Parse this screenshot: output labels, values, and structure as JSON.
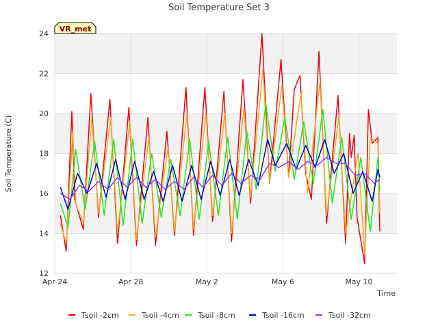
{
  "chart_data": {
    "type": "line",
    "title": "Soil Temperature Set 3",
    "xlabel": "Time",
    "ylabel": "Soil Temperature (C)",
    "badge": "VR_met",
    "ylim": [
      12,
      24
    ],
    "yticks": [
      12,
      14,
      16,
      18,
      20,
      22,
      24
    ],
    "xlim": [
      0,
      18
    ],
    "xticks": [
      {
        "x": 0,
        "label": "Apr 24"
      },
      {
        "x": 4,
        "label": "Apr 28"
      },
      {
        "x": 8,
        "label": "May 2"
      },
      {
        "x": 12,
        "label": "May 6"
      },
      {
        "x": 16,
        "label": "May 10"
      }
    ],
    "grid": "horizontal bands",
    "legend": "bottom",
    "series": [
      {
        "name": "Tsoil -2cm",
        "color": "#e8000b",
        "x": [
          0.3,
          0.6,
          0.9,
          1.05,
          1.5,
          1.9,
          2.3,
          2.9,
          3.3,
          3.9,
          4.3,
          4.9,
          5.3,
          5.9,
          6.3,
          6.9,
          7.3,
          7.9,
          8.3,
          8.9,
          9.3,
          9.9,
          10.3,
          10.9,
          11.3,
          11.9,
          12.3,
          12.6,
          12.9,
          13.2,
          13.5,
          13.9,
          14.3,
          14.9,
          15.3,
          15.5,
          15.6,
          15.75,
          15.9,
          16.3,
          16.5,
          16.7,
          17.0,
          17.1
        ],
        "values": [
          14.9,
          13.1,
          20.1,
          15.7,
          14.2,
          21.0,
          14.8,
          20.7,
          13.5,
          20.3,
          13.4,
          19.8,
          13.4,
          19.1,
          13.9,
          21.3,
          13.9,
          21.3,
          14.6,
          21.1,
          13.6,
          21.7,
          15.5,
          24.0,
          16.5,
          22.7,
          16.8,
          21.2,
          21.9,
          17.0,
          15.7,
          23.1,
          14.5,
          20.9,
          13.5,
          19.0,
          17.8,
          18.9,
          14.8,
          12.5,
          20.2,
          18.5,
          18.8,
          14.1
        ]
      },
      {
        "name": "Tsoil -4cm",
        "color": "#f5a623",
        "x": [
          0.3,
          0.6,
          0.95,
          1.1,
          1.5,
          1.95,
          2.3,
          2.95,
          3.3,
          3.95,
          4.3,
          4.95,
          5.3,
          5.95,
          6.3,
          6.95,
          7.3,
          7.95,
          8.3,
          8.95,
          9.3,
          9.95,
          10.3,
          10.95,
          11.3,
          11.95,
          12.3,
          12.95,
          13.3,
          13.95,
          14.3,
          14.95,
          15.3,
          15.95,
          16.3,
          16.6,
          17.0,
          17.1
        ],
        "values": [
          14.5,
          13.5,
          19.1,
          15.5,
          14.5,
          19.8,
          15.0,
          19.8,
          14.0,
          19.6,
          13.7,
          18.8,
          13.8,
          18.3,
          14.1,
          20.0,
          14.2,
          20.0,
          14.9,
          20.0,
          14.0,
          20.3,
          15.8,
          22.2,
          16.5,
          21.4,
          16.8,
          21.0,
          16.0,
          21.6,
          14.9,
          19.9,
          14.0,
          18.0,
          13.0,
          18.8,
          18.5,
          15.0
        ]
      },
      {
        "name": "Tsoil -8cm",
        "color": "#1ee81e",
        "x": [
          0.3,
          0.7,
          1.1,
          1.6,
          2.1,
          2.6,
          3.1,
          3.6,
          4.1,
          4.6,
          5.1,
          5.6,
          6.1,
          6.6,
          7.1,
          7.6,
          8.1,
          8.6,
          9.1,
          9.6,
          10.1,
          10.6,
          11.1,
          11.6,
          12.1,
          12.6,
          13.1,
          13.6,
          14.1,
          14.6,
          15.1,
          15.6,
          16.1,
          16.6,
          17.0,
          17.1
        ],
        "values": [
          15.5,
          14.3,
          18.2,
          15.2,
          18.6,
          14.9,
          18.7,
          14.4,
          18.7,
          14.5,
          18.0,
          14.8,
          17.7,
          14.9,
          18.7,
          14.7,
          18.6,
          14.9,
          18.8,
          14.7,
          19.1,
          16.2,
          20.5,
          17.1,
          19.8,
          16.7,
          19.6,
          16.5,
          20.2,
          15.5,
          18.8,
          14.7,
          17.8,
          14.1,
          17.8,
          16.1
        ]
      },
      {
        "name": "Tsoil -16cm",
        "color": "#0000cc",
        "x": [
          0.3,
          0.7,
          1.2,
          1.7,
          2.2,
          2.7,
          3.2,
          3.7,
          4.2,
          4.7,
          5.2,
          5.7,
          6.2,
          6.7,
          7.2,
          7.7,
          8.2,
          8.7,
          9.2,
          9.7,
          10.2,
          10.7,
          11.2,
          11.6,
          12.2,
          12.7,
          13.2,
          13.7,
          14.2,
          14.7,
          15.2,
          15.7,
          16.2,
          16.7,
          17.0,
          17.1
        ],
        "values": [
          16.3,
          15.2,
          17.0,
          16.0,
          17.5,
          15.8,
          17.7,
          15.7,
          17.6,
          15.7,
          17.1,
          15.6,
          17.4,
          15.6,
          17.4,
          15.7,
          17.6,
          15.9,
          17.7,
          15.9,
          17.7,
          16.4,
          18.7,
          17.4,
          18.5,
          17.2,
          18.4,
          17.3,
          18.7,
          17.0,
          18.0,
          16.0,
          17.1,
          15.6,
          17.2,
          16.8
        ]
      },
      {
        "name": "Tsoil -32cm",
        "color": "#9b30ff",
        "x": [
          0.3,
          0.8,
          1.3,
          1.8,
          2.3,
          2.8,
          3.3,
          3.8,
          4.3,
          4.8,
          5.3,
          5.8,
          6.3,
          6.8,
          7.3,
          7.8,
          8.3,
          8.8,
          9.3,
          9.8,
          10.3,
          10.8,
          11.3,
          11.8,
          12.3,
          12.8,
          13.3,
          13.8,
          14.3,
          14.8,
          15.3,
          15.8,
          16.3,
          16.8,
          17.1
        ],
        "values": [
          16.0,
          15.7,
          16.4,
          16.1,
          16.6,
          16.2,
          16.8,
          16.3,
          16.8,
          16.3,
          16.7,
          16.2,
          16.6,
          16.2,
          16.8,
          16.3,
          16.9,
          16.4,
          17.0,
          16.5,
          16.9,
          16.7,
          17.5,
          17.3,
          17.6,
          17.2,
          17.6,
          17.4,
          17.8,
          17.5,
          17.5,
          16.9,
          17.0,
          16.5,
          16.7
        ]
      }
    ]
  }
}
